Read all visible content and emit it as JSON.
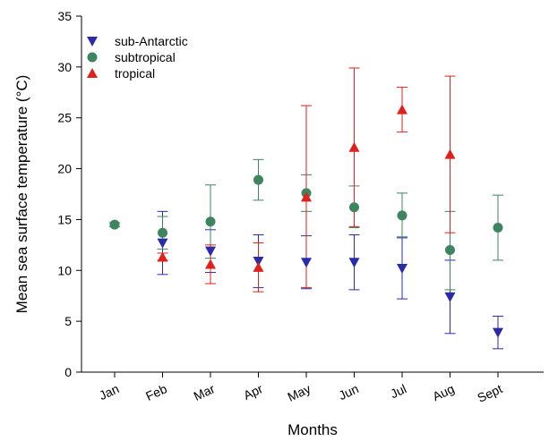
{
  "chart_data": {
    "type": "scatter",
    "categories": [
      "Jan",
      "Feb",
      "Mar",
      "Apr",
      "May",
      "Jun",
      "Jul",
      "Aug",
      "Sept"
    ],
    "xlabel": "Months",
    "ylabel": "Mean sea surface temperature (°C)",
    "ylim": [
      0,
      35
    ],
    "yticks": [
      0,
      5,
      10,
      15,
      20,
      25,
      30,
      35
    ],
    "grid": false,
    "legend_position": "top-left",
    "series": [
      {
        "name": "sub-Antarctic",
        "marker": "triangle-down",
        "color": "#2b2aa8",
        "points": [
          {
            "category": "Feb",
            "y": 12.7,
            "low": 9.6,
            "high": 15.8
          },
          {
            "category": "Mar",
            "y": 11.9,
            "low": 9.8,
            "high": 14.0
          },
          {
            "category": "Apr",
            "y": 10.9,
            "low": 8.3,
            "high": 13.5
          },
          {
            "category": "May",
            "y": 10.8,
            "low": 8.2,
            "high": 13.4
          },
          {
            "category": "Jun",
            "y": 10.8,
            "low": 8.1,
            "high": 13.5
          },
          {
            "category": "Jul",
            "y": 10.2,
            "low": 7.2,
            "high": 13.2
          },
          {
            "category": "Aug",
            "y": 7.4,
            "low": 3.8,
            "high": 11.0
          },
          {
            "category": "Sept",
            "y": 3.9,
            "low": 2.3,
            "high": 5.5
          }
        ]
      },
      {
        "name": "subtropical",
        "marker": "circle",
        "color": "#3f8460",
        "points": [
          {
            "category": "Jan",
            "y": 14.5,
            "low": 14.3,
            "high": 14.7
          },
          {
            "category": "Feb",
            "y": 13.7,
            "low": 12.1,
            "high": 15.3
          },
          {
            "category": "Mar",
            "y": 14.8,
            "low": 11.2,
            "high": 18.4
          },
          {
            "category": "Apr",
            "y": 18.9,
            "low": 16.9,
            "high": 20.9
          },
          {
            "category": "May",
            "y": 17.6,
            "low": 15.8,
            "high": 19.4
          },
          {
            "category": "Jun",
            "y": 16.2,
            "low": 14.2,
            "high": 18.3
          },
          {
            "category": "Jul",
            "y": 15.4,
            "low": 13.3,
            "high": 17.6
          },
          {
            "category": "Aug",
            "y": 12.0,
            "low": 8.1,
            "high": 15.8
          },
          {
            "category": "Sept",
            "y": 14.2,
            "low": 11.0,
            "high": 17.4
          }
        ]
      },
      {
        "name": "tropical",
        "marker": "triangle-up",
        "color": "#e0211b",
        "points": [
          {
            "category": "Feb",
            "y": 11.3,
            "low": 11.0,
            "high": 11.7
          },
          {
            "category": "Mar",
            "y": 10.6,
            "low": 8.7,
            "high": 12.5
          },
          {
            "category": "Apr",
            "y": 10.3,
            "low": 7.9,
            "high": 12.7
          },
          {
            "category": "May",
            "y": 17.2,
            "low": 8.3,
            "high": 26.2
          },
          {
            "category": "Jun",
            "y": 22.1,
            "low": 14.3,
            "high": 29.9
          },
          {
            "category": "Jul",
            "y": 25.8,
            "low": 23.6,
            "high": 28.0
          },
          {
            "category": "Aug",
            "y": 21.4,
            "low": 13.7,
            "high": 29.1
          }
        ]
      }
    ]
  }
}
